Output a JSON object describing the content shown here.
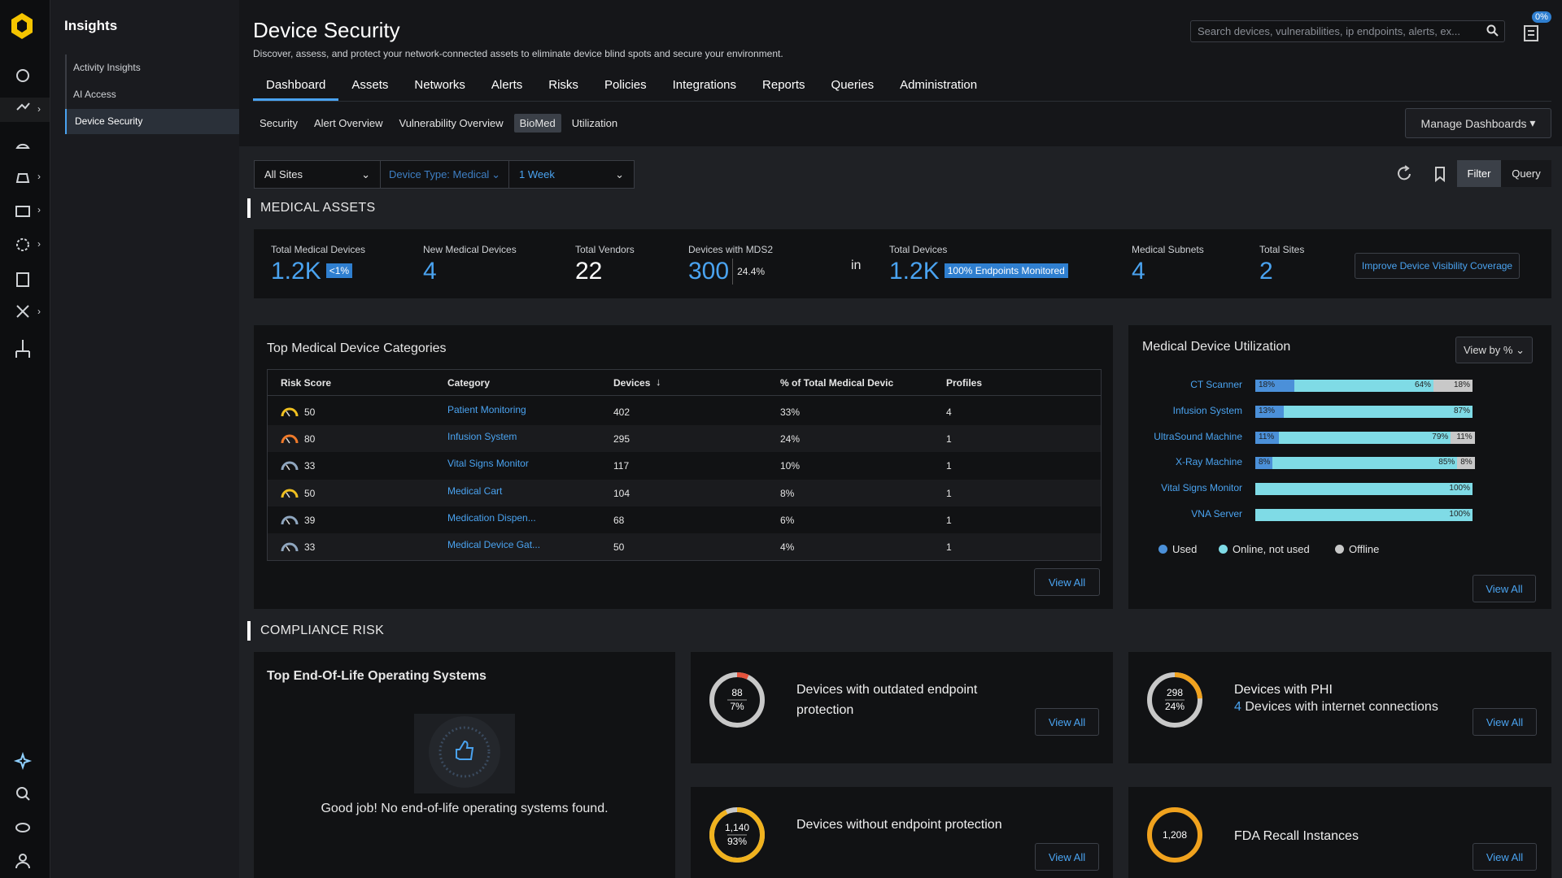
{
  "sidebar": {
    "title": "Insights",
    "items": [
      "Activity Insights",
      "AI Access",
      "Device Security"
    ],
    "selected": 2
  },
  "header": {
    "title": "Device Security",
    "subtitle": "Discover, assess, and protect your network-connected assets to eliminate device blind spots and secure your environment.",
    "search_placeholder": "Search devices, vulnerabilities, ip endpoints, alerts, ex...",
    "badge": "0%"
  },
  "tabs": {
    "items": [
      "Dashboard",
      "Assets",
      "Networks",
      "Alerts",
      "Risks",
      "Policies",
      "Integrations",
      "Reports",
      "Queries",
      "Administration"
    ],
    "selected": 0
  },
  "subtabs": {
    "items": [
      "Security",
      "Alert Overview",
      "Vulnerability Overview",
      "BioMed",
      "Utilization"
    ],
    "selected": 3
  },
  "manage_dashboards": "Manage Dashboards",
  "filters": {
    "site": "All Sites",
    "device_type": "Device Type: Medical",
    "range": "1 Week",
    "filter": "Filter",
    "query": "Query"
  },
  "medical_assets": {
    "heading": "MEDICAL ASSETS",
    "stats": [
      {
        "label": "Total Medical Devices",
        "value": "1.2K",
        "badge": "<1%",
        "color": "#4aa3f0"
      },
      {
        "label": "New Medical Devices",
        "value": "4",
        "color": "#4aa3f0"
      },
      {
        "label": "Total Vendors",
        "value": "22",
        "color": "#ffffff"
      },
      {
        "label": "Devices with MDS2",
        "value": "300",
        "extra": "24.4%",
        "color": "#4aa3f0"
      },
      {
        "label": "Total Devices",
        "value": "1.2K",
        "badge": "100% Endpoints Monitored",
        "color": "#4aa3f0"
      },
      {
        "label": "Medical Subnets",
        "value": "4",
        "color": "#4aa3f0"
      },
      {
        "label": "Total Sites",
        "value": "2",
        "color": "#4aa3f0"
      }
    ],
    "in": "in",
    "button": "Improve Device Visibility Coverage"
  },
  "categories": {
    "title": "Top Medical Device Categories",
    "columns": [
      "Risk Score",
      "Category",
      "Devices",
      "% of Total Medical Devic",
      "Profiles"
    ],
    "rows": [
      [
        "50",
        "Patient Monitoring",
        "402",
        "33%",
        "4"
      ],
      [
        "80",
        "Infusion System",
        "295",
        "24%",
        "1"
      ],
      [
        "33",
        "Vital Signs Monitor",
        "117",
        "10%",
        "1"
      ],
      [
        "50",
        "Medical Cart",
        "104",
        "8%",
        "1"
      ],
      [
        "39",
        "Medication Dispen...",
        "68",
        "6%",
        "1"
      ],
      [
        "33",
        "Medical Device Gat...",
        "50",
        "4%",
        "1"
      ]
    ],
    "view_all": "View All"
  },
  "utilization": {
    "title": "Medical Device Utilization",
    "view_by": "View by %",
    "legend": [
      {
        "name": "Used",
        "color": "#4b90d9"
      },
      {
        "name": "Online, not used",
        "color": "#7fdbe6"
      },
      {
        "name": "Offline",
        "color": "#c8c8c8"
      }
    ],
    "rows": [
      {
        "name": "CT Scanner",
        "values": [
          18,
          64,
          18
        ],
        "value_labels": [
          "18%",
          "64%",
          "18%"
        ]
      },
      {
        "name": "Infusion System",
        "values": [
          13,
          87,
          null
        ],
        "value_labels": [
          "13%",
          "87%",
          null
        ]
      },
      {
        "name": "UltraSound Machine",
        "values": [
          11,
          79,
          11
        ],
        "value_labels": [
          "11%",
          "79%",
          "11%"
        ]
      },
      {
        "name": "X-Ray Machine",
        "values": [
          8,
          85,
          8
        ],
        "value_labels": [
          "8%",
          "85%",
          "8%"
        ]
      },
      {
        "name": "Vital Signs Monitor",
        "values": [
          null,
          100,
          null
        ],
        "value_labels": [
          null,
          "100%",
          null
        ]
      },
      {
        "name": "VNA Server",
        "values": [
          null,
          100,
          null
        ],
        "value_labels": [
          null,
          "100%",
          null
        ]
      }
    ],
    "view_all": "View All"
  },
  "compliance": {
    "heading": "COMPLIANCE RISK",
    "eol": {
      "title": "Top End-Of-Life Operating Systems",
      "message": "Good job! No end-of-life operating systems found."
    },
    "cards": [
      {
        "count": "88",
        "pct": {
          "value": 7,
          "label": "7%"
        },
        "ring_color": "#e5533d",
        "title": "Devices with outdated endpoint protection",
        "view_all": "View All"
      },
      {
        "count": "298",
        "pct": {
          "value": 24,
          "label": "24%"
        },
        "ring_color": "#f0a21e",
        "title": "Devices with PHI",
        "sub_count": "4",
        "sub_text": "Devices with internet connections",
        "view_all": "View All"
      },
      {
        "count": "1,140",
        "pct": {
          "value": 93,
          "label": "93%"
        },
        "ring_color": "#f0b21e",
        "title": "Devices without endpoint protection",
        "view_all": "View All"
      },
      {
        "count": "1,208",
        "ring_color": "#f0a21e",
        "title": "FDA Recall Instances",
        "view_all": "View All"
      }
    ]
  }
}
